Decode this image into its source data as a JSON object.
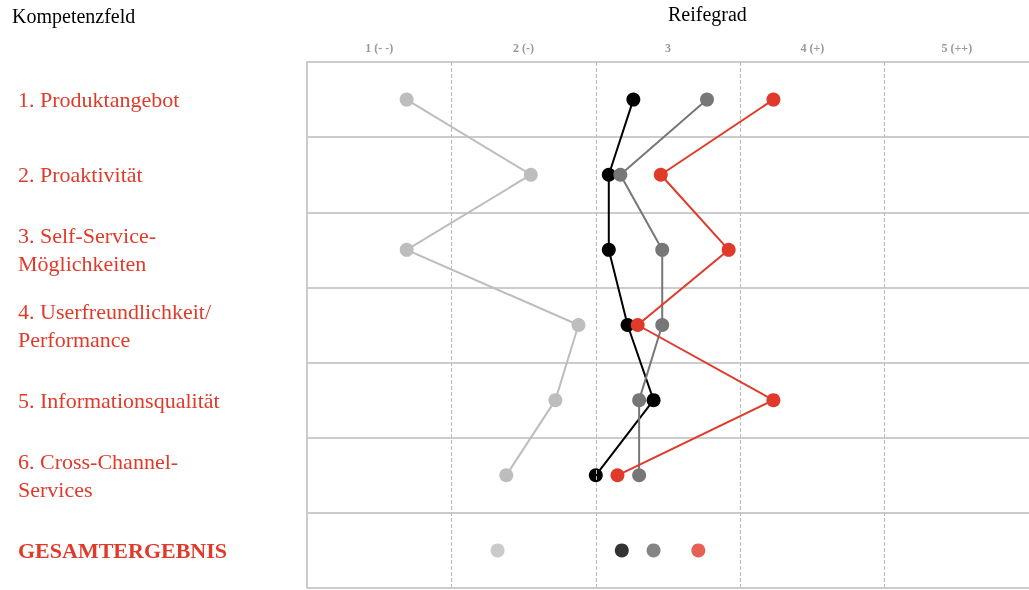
{
  "chart_data": {
    "type": "line",
    "orientation": "horizontal",
    "xlabel": "Reifegrad",
    "ylabel": "Kompetenzfeld",
    "categories": [
      "1. Produktangebot",
      "2. Proaktivität",
      "3. Self-Service-\nMöglichkeiten",
      "4. Userfreundlichkeit/\nPerformance",
      "5. Informationsqualität",
      "6. Cross-Channel-\nServices",
      "GESAMTERGEBNIS"
    ],
    "xlim": [
      0.5,
      5.5
    ],
    "xticks": [
      {
        "value": 1,
        "label": "1 (- -)"
      },
      {
        "value": 2,
        "label": "2 (-)"
      },
      {
        "value": 3,
        "label": "3"
      },
      {
        "value": 4,
        "label": "4 (+)"
      },
      {
        "value": 5,
        "label": "5 (++)"
      }
    ],
    "grid": "y",
    "marker": "circle",
    "line_style": "solid",
    "ref_lines": [
      {
        "axis": "x",
        "value": 1.5,
        "line_style": "dashed",
        "color": "#bbbbbb"
      },
      {
        "axis": "x",
        "value": 2.5,
        "line_style": "dashed",
        "color": "#bbbbbb"
      },
      {
        "axis": "x",
        "value": 3.5,
        "line_style": "dashed",
        "color": "#bbbbbb"
      },
      {
        "axis": "x",
        "value": 4.5,
        "line_style": "dashed",
        "color": "#bbbbbb"
      }
    ],
    "series": [
      {
        "color": "#bdbdbd",
        "values": [
          1.19,
          2.05,
          1.19,
          2.38,
          2.22,
          1.88,
          null
        ]
      },
      {
        "color": "#000000",
        "values": [
          2.76,
          2.59,
          2.59,
          2.72,
          2.9,
          2.5,
          null
        ]
      },
      {
        "color": "#777777",
        "values": [
          3.27,
          2.67,
          2.96,
          2.96,
          2.8,
          2.8,
          null
        ]
      },
      {
        "color": "#e03a2a",
        "values": [
          3.73,
          2.95,
          3.42,
          2.79,
          3.73,
          2.65,
          null
        ]
      },
      {
        "type": "scatter",
        "color": "#bdbdbd",
        "values": [
          null,
          null,
          null,
          null,
          null,
          null,
          1.82
        ]
      },
      {
        "type": "scatter",
        "color": "#000000",
        "values": [
          null,
          null,
          null,
          null,
          null,
          null,
          2.68
        ]
      },
      {
        "type": "scatter",
        "color": "#666666",
        "values": [
          null,
          null,
          null,
          null,
          null,
          null,
          2.9
        ]
      },
      {
        "type": "scatter",
        "color": "#e03a2a",
        "values": [
          null,
          null,
          null,
          null,
          null,
          null,
          3.21
        ]
      }
    ]
  }
}
